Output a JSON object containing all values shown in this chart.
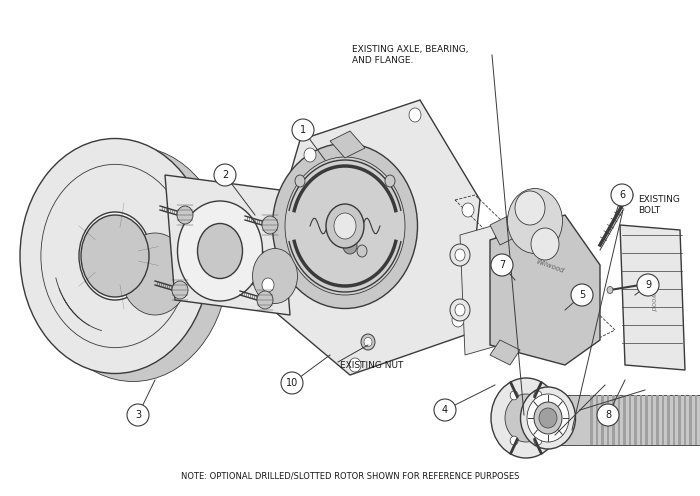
{
  "background_color": "#ffffff",
  "line_color": "#3a3a3a",
  "fill_light": "#e8e8e8",
  "fill_medium": "#c8c8c8",
  "fill_dark": "#a0a0a0",
  "fill_darker": "#787878",
  "text_color": "#1a1a1a",
  "note_text": "NOTE: OPTIONAL DRILLED/SLOTTED ROTOR SHOWN FOR REFERENCE PURPOSES",
  "label_existing_axle": "EXISTING AXLE, BEARING,\nAND FLANGE.",
  "label_existing_bolt": "EXISTING\nBOLT",
  "label_existing_nut": "EXISTING NUT",
  "font_size_label": 6.5,
  "font_size_callout": 7.5,
  "font_size_note": 6.0
}
